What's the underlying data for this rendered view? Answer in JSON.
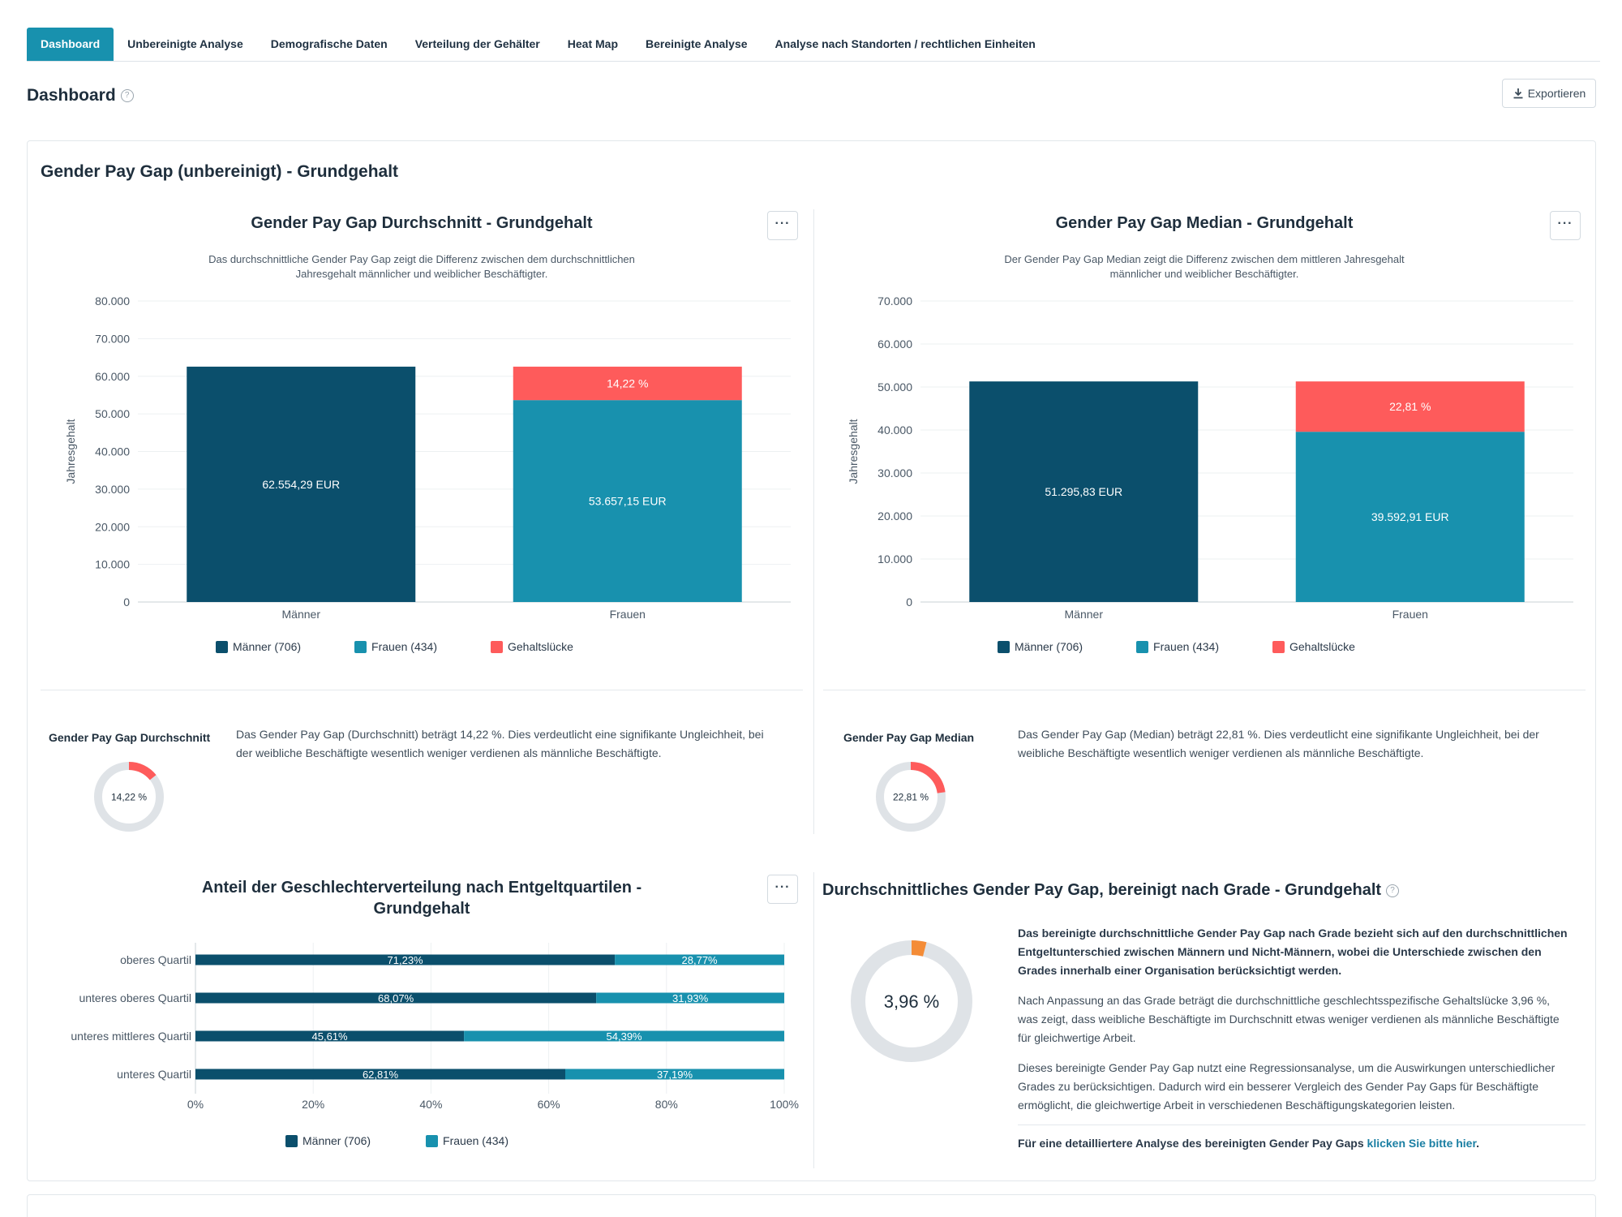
{
  "tabs": [
    {
      "label": "Dashboard",
      "active": true
    },
    {
      "label": "Unbereinigte Analyse"
    },
    {
      "label": "Demografische Daten"
    },
    {
      "label": "Verteilung der Gehälter"
    },
    {
      "label": "Heat Map"
    },
    {
      "label": "Bereinigte Analyse"
    },
    {
      "label": "Analyse nach Standorten / rechtlichen Einheiten"
    }
  ],
  "page": {
    "title": "Dashboard",
    "help_icon": "question-circle-icon",
    "export_label": "Exportieren",
    "export_icon": "download-icon"
  },
  "section": {
    "title": "Gender Pay Gap (unbereinigt) - Grundgehalt"
  },
  "more_label": "···",
  "colors": {
    "men": "#0b4f6c",
    "women": "#1891ae",
    "gap": "#fe5b5b",
    "adjusted": "#f48c37",
    "ring": "#dfe3e7"
  },
  "chart_avg": {
    "title": "Gender Pay Gap Durchschnitt - Grundgehalt",
    "subtitle_l1": "Das durchschnittliche Gender Pay Gap zeigt die Differenz zwischen dem durchschnittlichen",
    "subtitle_l2": "Jahresgehalt männlicher und weiblicher Beschäftigter.",
    "ylabel": "Jahresgehalt",
    "chart_data": {
      "type": "bar",
      "stacked": true,
      "categories": [
        "Männer",
        "Frauen"
      ],
      "ylim": [
        0,
        80000
      ],
      "yticks": [
        "0",
        "10.000",
        "20.000",
        "30.000",
        "40.000",
        "50.000",
        "60.000",
        "70.000",
        "80.000"
      ],
      "series": [
        {
          "name": "Männer (706)",
          "values": [
            62554.29,
            0
          ]
        },
        {
          "name": "Frauen (434)",
          "values": [
            0,
            53657.15
          ]
        },
        {
          "name": "Gehaltslücke",
          "values": [
            0,
            8897.14
          ]
        }
      ],
      "labels": {
        "men": "62.554,29 EUR",
        "women": "53.657,15 EUR",
        "gap": "14,22 %"
      }
    },
    "legend": [
      "Männer (706)",
      "Frauen (434)",
      "Gehaltslücke"
    ]
  },
  "chart_median": {
    "title": "Gender Pay Gap Median - Grundgehalt",
    "subtitle_l1": "Der Gender Pay Gap Median zeigt die Differenz zwischen dem mittleren Jahresgehalt",
    "subtitle_l2": "männlicher und weiblicher Beschäftigter.",
    "ylabel": "Jahresgehalt",
    "chart_data": {
      "type": "bar",
      "stacked": true,
      "categories": [
        "Männer",
        "Frauen"
      ],
      "ylim": [
        0,
        70000
      ],
      "yticks": [
        "0",
        "10.000",
        "20.000",
        "30.000",
        "40.000",
        "50.000",
        "60.000",
        "70.000"
      ],
      "series": [
        {
          "name": "Männer (706)",
          "values": [
            51295.83,
            0
          ]
        },
        {
          "name": "Frauen (434)",
          "values": [
            0,
            39592.91
          ]
        },
        {
          "name": "Gehaltslücke",
          "values": [
            0,
            11702.92
          ]
        }
      ],
      "labels": {
        "men": "51.295,83 EUR",
        "women": "39.592,91 EUR",
        "gap": "22,81 %"
      }
    },
    "legend": [
      "Männer (706)",
      "Frauen (434)",
      "Gehaltslücke"
    ]
  },
  "gap_avg": {
    "label": "Gender Pay Gap Durchschnitt",
    "value": 14.22,
    "value_label": "14,22 %",
    "text_l1": "Das Gender Pay Gap (Durchschnitt) beträgt 14,22 %. Dies verdeutlicht eine signifikante Ungleichheit, bei",
    "text_l2": "der weibliche Beschäftigte wesentlich weniger verdienen als männliche Beschäftigte."
  },
  "gap_median": {
    "label": "Gender Pay Gap Median",
    "value": 22.81,
    "value_label": "22,81 %",
    "text_l1": "Das Gender Pay Gap (Median) beträgt 22,81 %. Dies verdeutlicht eine signifikante Ungleichheit, bei der",
    "text_l2": "weibliche Beschäftigte wesentlich weniger verdienen als männliche Beschäftigte."
  },
  "quartiles": {
    "title_l1": "Anteil der Geschlechterverteilung nach Entgeltquartilen -",
    "title_l2": "Grundgehalt",
    "chart_data": {
      "type": "bar",
      "orientation": "horizontal",
      "stacked": true,
      "categories": [
        "oberes Quartil",
        "unteres oberes Quartil",
        "unteres mittleres Quartil",
        "unteres Quartil"
      ],
      "xlim": [
        0,
        100
      ],
      "xticks": [
        "0%",
        "20%",
        "40%",
        "60%",
        "80%",
        "100%"
      ],
      "series": [
        {
          "name": "Männer (706)",
          "values": [
            71.23,
            68.07,
            45.61,
            62.81
          ],
          "labels": [
            "71,23%",
            "68,07%",
            "45,61%",
            "62,81%"
          ]
        },
        {
          "name": "Frauen (434)",
          "values": [
            28.77,
            31.93,
            54.39,
            37.19
          ],
          "labels": [
            "28,77%",
            "31,93%",
            "54,39%",
            "37,19%"
          ]
        }
      ]
    },
    "legend": [
      "Männer (706)",
      "Frauen (434)"
    ]
  },
  "adjusted": {
    "title": "Durchschnittliches Gender Pay Gap, bereinigt nach Grade - Grundgehalt",
    "value": 3.96,
    "value_label": "3,96 %",
    "p1": [
      "Das bereinigte durchschnittliche Gender Pay Gap nach Grade bezieht sich auf den durchschnittlichen",
      "Entgeltunterschied zwischen Männern und Nicht-Männern, wobei die Unterschiede zwischen den",
      "Grades innerhalb einer Organisation berücksichtigt werden."
    ],
    "p2": [
      "Nach Anpassung an das Grade beträgt die durchschnittliche geschlechtsspezifische Gehaltslücke 3,96 %,",
      "was zeigt, dass weibliche Beschäftigte im Durchschnitt etwas weniger verdienen als männliche Beschäftigte",
      "für gleichwertige Arbeit."
    ],
    "p3": [
      "Dieses bereinigte Gender Pay Gap nutzt eine Regressionsanalyse, um die Auswirkungen unterschiedlicher",
      "Grades zu berücksichtigen. Dadurch wird ein besserer Vergleich des Gender Pay Gaps für Beschäftigte",
      "ermöglicht, die gleichwertige Arbeit in verschiedenen Beschäftigungskategorien leisten."
    ],
    "footer_text": "Für eine detailliertere Analyse des bereinigten Gender Pay Gaps ",
    "footer_link": "klicken Sie bitte hier",
    "footer_end": "."
  }
}
